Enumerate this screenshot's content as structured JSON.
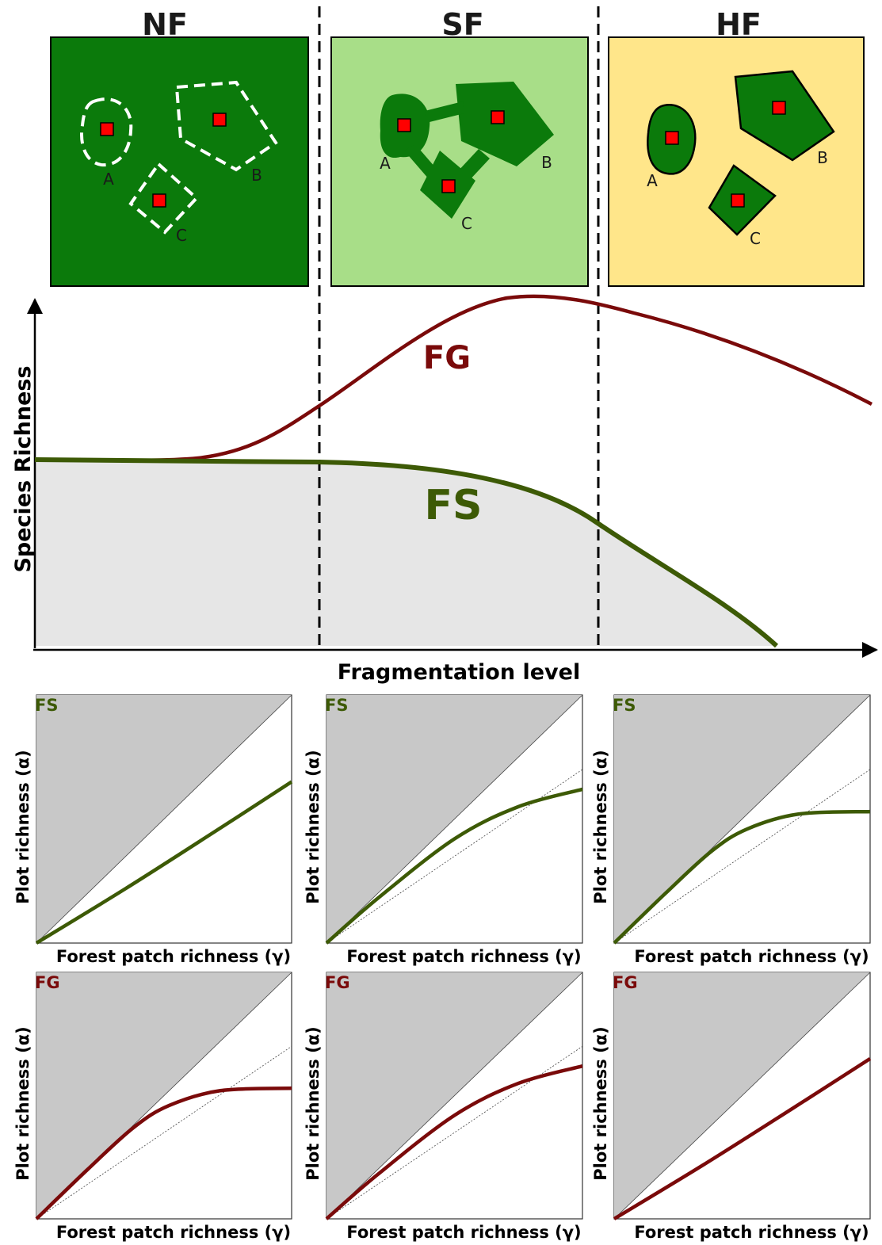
{
  "landscapes": [
    {
      "id": "NF",
      "label": "NF",
      "bg": "#0b7a0b",
      "patches": [
        "A",
        "B",
        "C"
      ]
    },
    {
      "id": "SF",
      "label": "SF",
      "bg": "#a8de88",
      "patches": [
        "A",
        "B",
        "C"
      ]
    },
    {
      "id": "HF",
      "label": "HF",
      "bg": "#ffe68a",
      "patches": [
        "A",
        "B",
        "C"
      ]
    }
  ],
  "main_plot": {
    "y_label": "Species Richness",
    "x_label": "Fragmentation level",
    "curves": [
      {
        "label": "FG",
        "color": "#7a0a0a"
      },
      {
        "label": "FS",
        "color": "#3d5a06"
      }
    ]
  },
  "panels": {
    "x_label": "Forest patch richness (γ)",
    "y_label": "Plot richness (α)",
    "rows": [
      {
        "tag": "FS",
        "color": "#3d5a06",
        "shapes": [
          "linear-below",
          "saturating-crossing",
          "saturating-strong"
        ]
      },
      {
        "tag": "FG",
        "color": "#7a0a0a",
        "shapes": [
          "saturating-strong",
          "saturating-crossing",
          "linear-below"
        ]
      }
    ]
  },
  "colors": {
    "patch_green": "#0b7a0b",
    "plot_marker": "#ff0000",
    "shaded_region": "#c8c8c8",
    "fs_fill": "#e6e6e6"
  }
}
